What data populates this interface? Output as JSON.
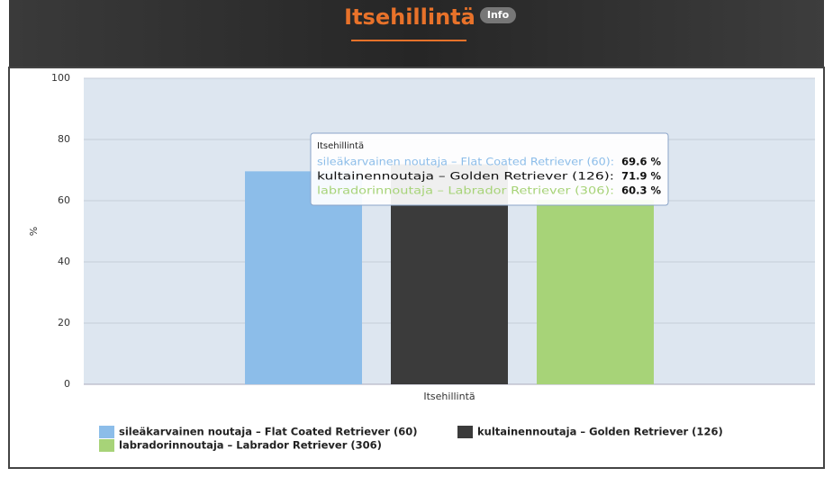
{
  "chart_data": {
    "type": "bar",
    "title": "Itsehillintä",
    "badge": "Info",
    "categories": [
      "Itsehillintä"
    ],
    "y_label": "%",
    "ylim": [
      0,
      100
    ],
    "yticks": [
      0,
      20,
      40,
      60,
      80,
      100
    ],
    "grid": true,
    "series": [
      {
        "name": "sileäkarvainen noutaja – Flat Coated Retriever (60)",
        "color": "#8cbde9",
        "values": [
          69.6
        ],
        "value_labels": [
          "69.6 %"
        ],
        "tooltip_label": "sileäkarvainen noutaja – Flat Coated Retriever (60):"
      },
      {
        "name": "kultainennoutaja – Golden Retriever (126)",
        "color": "#3b3b3b",
        "values": [
          71.9
        ],
        "value_labels": [
          "71.9 %"
        ],
        "tooltip_label": "kultainennoutaja – Golden Retriever (126):"
      },
      {
        "name": "labradorinnoutaja – Labrador Retriever (306)",
        "color": "#a7d378",
        "values": [
          60.3
        ],
        "value_labels": [
          "60.3 %"
        ],
        "tooltip_label": "labradorinnoutaja – Labrador Retriever (306):"
      }
    ]
  }
}
